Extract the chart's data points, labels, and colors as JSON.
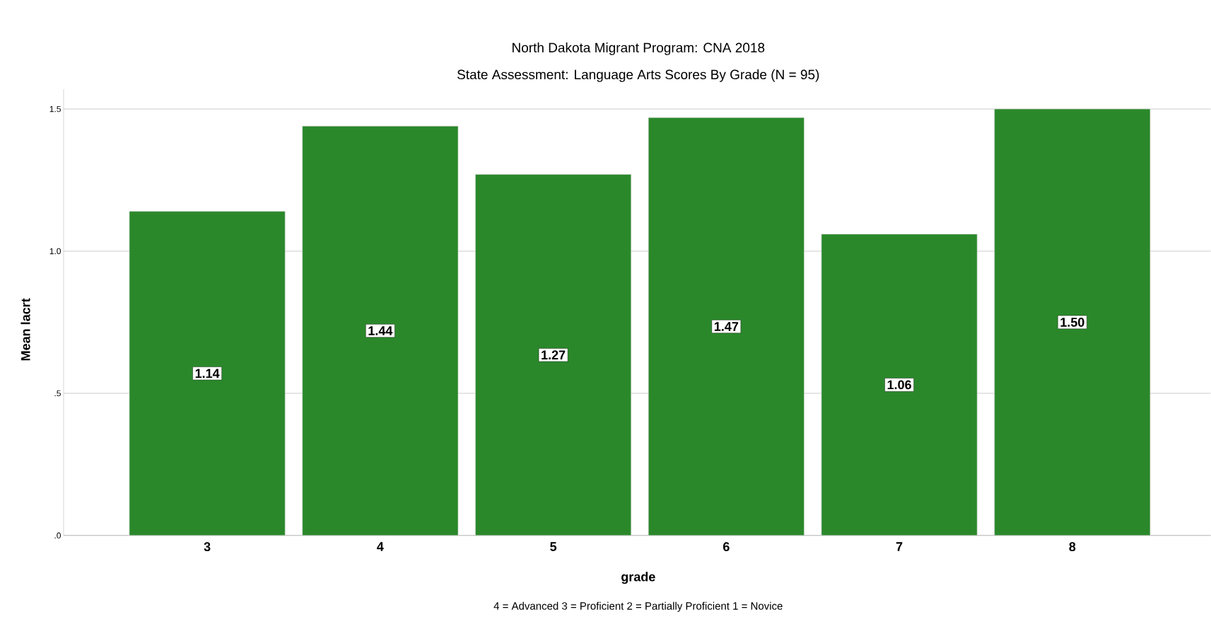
{
  "chart_data": {
    "type": "bar",
    "title": "North Dakota Migrant Program: CNA 2018",
    "subtitle": "State Assessment: Language Arts Scores By Grade (N = 95)",
    "xlabel": "grade",
    "ylabel": "Mean lacrt",
    "categories": [
      "3",
      "4",
      "5",
      "6",
      "7",
      "8"
    ],
    "values": [
      1.14,
      1.44,
      1.27,
      1.47,
      1.06,
      1.5
    ],
    "value_labels": [
      "1.14",
      "1.44",
      "1.27",
      "1.47",
      "1.06",
      "1.50"
    ],
    "color": "#2a882a",
    "ylim": [
      0,
      1.57
    ],
    "yticks": [
      {
        "value": 0,
        "label": ".0"
      },
      {
        "value": 0.5,
        "label": ".5"
      },
      {
        "value": 1,
        "label": "1.0"
      },
      {
        "value": 1.5,
        "label": "1.5"
      }
    ],
    "grid": "y",
    "annotations": [
      "4 = Advanced  3 = Proficient   2 = Partially Proficient 1 = Novice"
    ]
  }
}
